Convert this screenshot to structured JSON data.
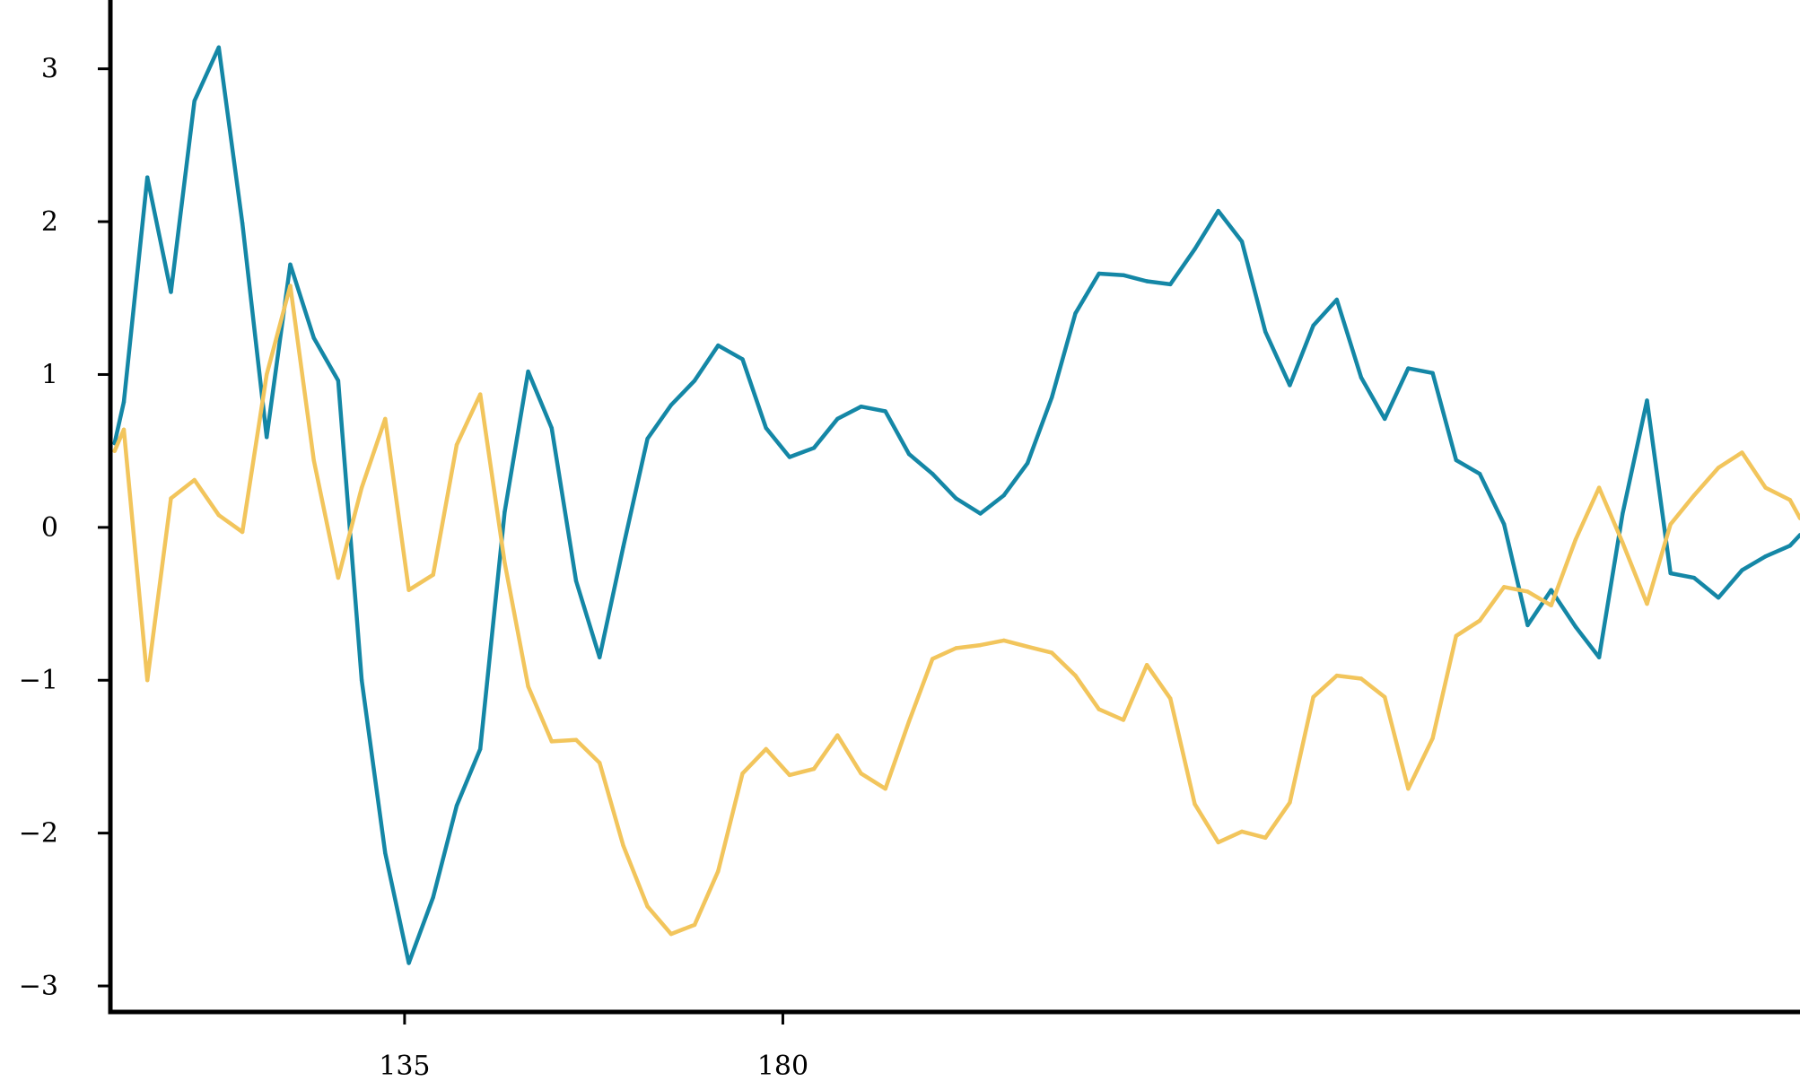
{
  "chart_data": {
    "type": "line",
    "title": "",
    "xlabel": "",
    "ylabel": "",
    "grid": false,
    "xlim": [
      100,
      301
    ],
    "ylim": [
      -3.17,
      3.45
    ],
    "x_ticks": [
      135,
      180
    ],
    "y_ticks": [
      -3,
      -2,
      -1,
      0,
      1,
      2,
      3
    ],
    "x_tick_labels": [
      "135",
      "180"
    ],
    "y_tick_labels": [
      "−3",
      "−2",
      "−1",
      "0",
      "1",
      "2",
      "3"
    ],
    "x": [
      100.5,
      101.6,
      104.4,
      107.2,
      110.0,
      112.9,
      115.7,
      118.6,
      121.4,
      124.2,
      127.1,
      129.9,
      132.7,
      135.5,
      138.4,
      141.2,
      144.0,
      146.9,
      149.7,
      152.5,
      155.4,
      158.2,
      161.0,
      163.9,
      166.7,
      169.5,
      172.3,
      175.2,
      178.0,
      180.8,
      183.7,
      186.5,
      189.3,
      192.2,
      195.0,
      197.8,
      200.6,
      203.5,
      206.3,
      209.1,
      212.0,
      214.8,
      217.6,
      220.5,
      223.3,
      226.1,
      229.0,
      231.8,
      234.6,
      237.4,
      240.3,
      243.1,
      245.9,
      248.8,
      251.6,
      254.4,
      257.3,
      260.1,
      262.9,
      265.8,
      268.6,
      271.4,
      274.3,
      277.1,
      279.9,
      282.8,
      285.6,
      288.4,
      291.3,
      294.1,
      296.9,
      299.8,
      301.0
    ],
    "series": [
      {
        "color": "#1487a6",
        "values": [
          0.55,
          0.82,
          2.29,
          1.54,
          2.79,
          3.14,
          1.99,
          0.59,
          1.72,
          1.24,
          0.96,
          -1.0,
          -2.13,
          -2.85,
          -2.42,
          -1.82,
          -1.45,
          0.1,
          1.02,
          0.65,
          -0.35,
          -0.85,
          -0.13,
          0.58,
          0.8,
          0.96,
          1.19,
          1.1,
          0.65,
          0.46,
          0.52,
          0.71,
          0.79,
          0.76,
          0.48,
          0.35,
          0.19,
          0.09,
          0.21,
          0.42,
          0.85,
          1.4,
          1.66,
          1.65,
          1.61,
          1.59,
          1.82,
          2.07,
          1.87,
          1.28,
          0.93,
          1.32,
          1.49,
          0.98,
          0.71,
          1.04,
          1.01,
          0.44,
          0.35,
          0.02,
          -0.64,
          -0.41,
          -0.65,
          -0.85,
          0.09,
          0.83,
          -0.3,
          -0.33,
          -0.46,
          -0.28,
          -0.19,
          -0.12,
          -0.05
        ]
      },
      {
        "color": "#f2c55c",
        "values": [
          0.5,
          0.64,
          -1.0,
          0.19,
          0.31,
          0.08,
          -0.03,
          1.0,
          1.58,
          0.44,
          -0.33,
          0.26,
          0.71,
          -0.41,
          -0.31,
          0.54,
          0.87,
          -0.23,
          -1.04,
          -1.4,
          -1.39,
          -1.54,
          -2.08,
          -2.48,
          -2.66,
          -2.6,
          -2.25,
          -1.61,
          -1.45,
          -1.62,
          -1.58,
          -1.36,
          -1.61,
          -1.71,
          -1.27,
          -0.86,
          -0.79,
          -0.77,
          -0.74,
          -0.78,
          -0.82,
          -0.97,
          -1.19,
          -1.26,
          -0.9,
          -1.12,
          -1.81,
          -2.06,
          -1.99,
          -2.03,
          -1.8,
          -1.11,
          -0.97,
          -0.99,
          -1.11,
          -1.71,
          -1.38,
          -0.71,
          -0.61,
          -0.39,
          -0.42,
          -0.51,
          -0.08,
          0.26,
          -0.1,
          -0.5,
          0.02,
          0.21,
          0.39,
          0.49,
          0.26,
          0.18,
          0.06
        ]
      }
    ]
  }
}
